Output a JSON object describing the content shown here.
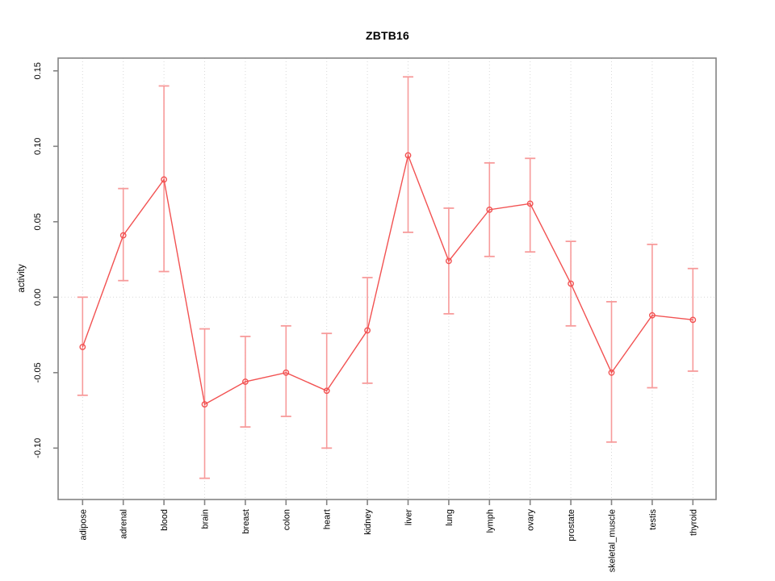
{
  "title": "ZBTB16",
  "chart_data": {
    "type": "line",
    "title": "ZBTB16",
    "xlabel": "",
    "ylabel": "activity",
    "legend": "none",
    "grid": "dotted vertical gridline at each category; dotted horizontal line at y=0",
    "point_style": "open-circle",
    "error_bars": true,
    "ylim": [
      -0.13,
      0.155
    ],
    "yticks": [
      0.15,
      0.1,
      0.05,
      0.0,
      -0.05,
      -0.1
    ],
    "ytick_labels": [
      "0.15",
      "0.10",
      "0.05",
      "0.00",
      "-0.05",
      "-0.10"
    ],
    "categories": [
      "adipose",
      "adrenal",
      "blood",
      "brain",
      "breast",
      "colon",
      "heart",
      "kidney",
      "liver",
      "lung",
      "lymph",
      "ovary",
      "prostate",
      "skeletal_muscle",
      "testis",
      "thyroid"
    ],
    "series": [
      {
        "name": "activity",
        "values": [
          -0.033,
          0.041,
          0.078,
          -0.071,
          -0.056,
          -0.05,
          -0.062,
          -0.022,
          0.094,
          0.024,
          0.058,
          0.062,
          0.009,
          -0.05,
          -0.012,
          -0.015
        ]
      }
    ],
    "error_upper": [
      0.0,
      0.072,
      0.14,
      -0.021,
      -0.026,
      -0.019,
      -0.024,
      0.013,
      0.146,
      0.059,
      0.089,
      0.092,
      0.037,
      -0.003,
      0.035,
      0.019
    ],
    "error_lower": [
      -0.065,
      0.011,
      0.017,
      -0.12,
      -0.086,
      -0.079,
      -0.1,
      -0.057,
      0.043,
      -0.011,
      0.027,
      0.03,
      -0.019,
      -0.096,
      -0.06,
      -0.049
    ],
    "colors": {
      "line": "#f25252",
      "point": "#f25252",
      "error_bar": "#f79b9b",
      "axis_box": "#848484",
      "gridline": "#d8d8d8",
      "text": "#000000",
      "background": "#ffffff"
    }
  }
}
